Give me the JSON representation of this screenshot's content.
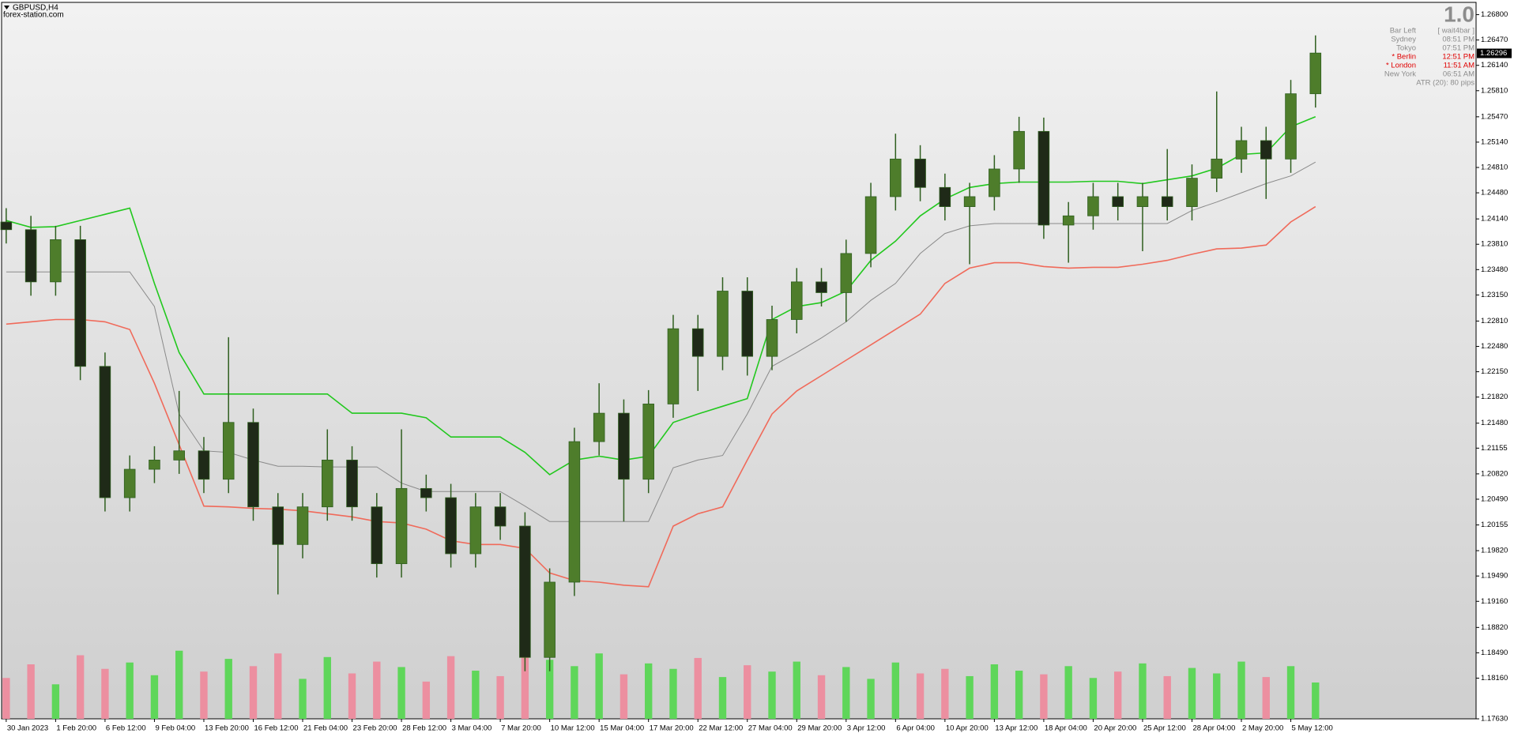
{
  "header": {
    "symbol": "GBPUSD,H4",
    "site": "forex-station.com"
  },
  "info_panel": {
    "big_value": "1.0",
    "rows": [
      {
        "label": "Bar Left",
        "value": "[ wait4bar ]",
        "color": "#8c8c8c"
      },
      {
        "label": "Sydney",
        "value": "08:51 PM",
        "color": "#8c8c8c"
      },
      {
        "label": "Tokyo",
        "value": "07:51 PM",
        "color": "#8c8c8c"
      },
      {
        "label": "* Berlin",
        "value": "12:51 PM",
        "color": "#e00000"
      },
      {
        "label": "* London",
        "value": "11:51 AM",
        "color": "#e00000"
      },
      {
        "label": "New York",
        "value": "06:51 AM",
        "color": "#8c8c8c"
      }
    ],
    "atr": "ATR (20): 80 pips"
  },
  "chart_data": {
    "type": "candlestick",
    "x": [
      0,
      8,
      16,
      24,
      32,
      40,
      48,
      56,
      64,
      72,
      80,
      88,
      96,
      104,
      112,
      120,
      128,
      136,
      144,
      152,
      160,
      168,
      176,
      184,
      192,
      200,
      208,
      216,
      224,
      232,
      240,
      248,
      256,
      264,
      272,
      280,
      288,
      296,
      304,
      312,
      320,
      328,
      336,
      344,
      352,
      360,
      368,
      376,
      384,
      392,
      400,
      408,
      416,
      424
    ],
    "open": [
      1.241,
      1.24,
      1.2332,
      1.2387,
      1.2222,
      1.2051,
      1.2088,
      1.21,
      1.2112,
      1.2075,
      1.2149,
      1.2039,
      1.199,
      1.2039,
      1.21,
      1.2039,
      1.1965,
      1.2063,
      1.2051,
      1.1978,
      1.2039,
      1.2014,
      1.1843,
      1.1941,
      1.2124,
      1.2161,
      1.2075,
      1.2173,
      1.2271,
      1.2235,
      1.232,
      1.2235,
      1.2283,
      1.2332,
      1.2318,
      1.2369,
      1.2443,
      1.2492,
      1.2455,
      1.243,
      1.2443,
      1.2479,
      1.2528,
      1.2406,
      1.2418,
      1.2443,
      1.243,
      1.2443,
      1.243,
      1.2467,
      1.2492,
      1.2516,
      1.2492,
      1.2577
    ],
    "high": [
      1.2428,
      1.2418,
      1.2405,
      1.2405,
      1.224,
      1.2106,
      1.2118,
      1.219,
      1.213,
      1.226,
      1.2167,
      1.2057,
      1.2057,
      1.214,
      1.2118,
      1.2057,
      1.214,
      1.2081,
      1.2069,
      1.2057,
      1.2057,
      1.2032,
      1.1959,
      1.2142,
      1.22,
      1.2179,
      1.2191,
      1.2289,
      1.2289,
      1.2338,
      1.2338,
      1.2301,
      1.235,
      1.235,
      1.2387,
      1.2461,
      1.2525,
      1.251,
      1.2473,
      1.2461,
      1.2497,
      1.2547,
      1.2546,
      1.2436,
      1.2461,
      1.2461,
      1.2461,
      1.2505,
      1.2485,
      1.258,
      1.2534,
      1.2534,
      1.2595,
      1.2653
    ],
    "low": [
      1.2382,
      1.2314,
      1.2314,
      1.2204,
      1.2033,
      1.2033,
      1.207,
      1.2082,
      1.2057,
      1.2057,
      1.2021,
      1.1925,
      1.1972,
      1.2021,
      1.2021,
      1.1947,
      1.1947,
      1.2033,
      1.196,
      1.196,
      1.1996,
      1.1825,
      1.1825,
      1.1923,
      1.2106,
      1.202,
      1.2057,
      1.2155,
      1.219,
      1.2217,
      1.221,
      1.2217,
      1.2265,
      1.23,
      1.228,
      1.2351,
      1.2425,
      1.2437,
      1.2412,
      1.2355,
      1.2425,
      1.2461,
      1.2388,
      1.2357,
      1.24,
      1.2412,
      1.2372,
      1.2412,
      1.2412,
      1.2449,
      1.2474,
      1.244,
      1.2474,
      1.2559
    ],
    "close": [
      1.24,
      1.2332,
      1.2387,
      1.2222,
      1.2051,
      1.2088,
      1.21,
      1.2112,
      1.2075,
      1.2149,
      1.2039,
      1.199,
      1.2039,
      1.21,
      1.2039,
      1.1965,
      1.2063,
      1.2051,
      1.1978,
      1.2039,
      1.2014,
      1.1843,
      1.1941,
      1.2124,
      1.2161,
      1.2075,
      1.2173,
      1.2271,
      1.2235,
      1.232,
      1.2235,
      1.2283,
      1.2332,
      1.2318,
      1.2369,
      1.2443,
      1.2492,
      1.2455,
      1.243,
      1.2443,
      1.2479,
      1.2528,
      1.2406,
      1.2418,
      1.2443,
      1.243,
      1.2443,
      1.243,
      1.2467,
      1.2492,
      1.2516,
      1.2492,
      1.2577,
      1.263
    ],
    "up_color": "#4e7d2b",
    "down_color": "#1f2a18",
    "wick_color": "#2f5f1f",
    "lines": [
      {
        "color": "#22c81e",
        "values": [
          1.2412,
          1.2403,
          1.2404,
          1.2412,
          1.242,
          1.2428,
          1.233,
          1.224,
          1.2186,
          1.2186,
          1.2186,
          1.2186,
          1.2186,
          1.2186,
          1.2161,
          1.2161,
          1.2161,
          1.2155,
          1.213,
          1.213,
          1.213,
          1.211,
          1.2081,
          1.21,
          1.2105,
          1.21,
          1.2105,
          1.2149,
          1.216,
          1.217,
          1.218,
          1.2283,
          1.23,
          1.2305,
          1.232,
          1.236,
          1.2385,
          1.2418,
          1.244,
          1.2455,
          1.246,
          1.2462,
          1.2462,
          1.2462,
          1.2463,
          1.2463,
          1.246,
          1.2465,
          1.247,
          1.248,
          1.2498,
          1.25,
          1.2534,
          1.2547
        ]
      },
      {
        "color": "#8a8a8a",
        "values": [
          1.2345,
          1.2345,
          1.2345,
          1.2345,
          1.2345,
          1.2345,
          1.23,
          1.216,
          1.2112,
          1.211,
          1.21,
          1.2092,
          1.2092,
          1.2091,
          1.2091,
          1.2091,
          1.207,
          1.2059,
          1.2059,
          1.2059,
          1.2059,
          1.204,
          1.202,
          1.202,
          1.202,
          1.202,
          1.202,
          1.209,
          1.21,
          1.2106,
          1.216,
          1.2222,
          1.224,
          1.2259,
          1.228,
          1.2308,
          1.233,
          1.2369,
          1.2395,
          1.2405,
          1.2408,
          1.2408,
          1.2408,
          1.2408,
          1.2408,
          1.2408,
          1.2408,
          1.2408,
          1.2425,
          1.2436,
          1.2448,
          1.246,
          1.247,
          1.2488
        ]
      },
      {
        "color": "#f06a5a",
        "values": [
          1.2277,
          1.228,
          1.2283,
          1.2283,
          1.228,
          1.227,
          1.22,
          1.212,
          1.204,
          1.2039,
          1.2037,
          1.2036,
          1.2034,
          1.203,
          1.2026,
          1.202,
          1.2018,
          1.201,
          1.1995,
          1.199,
          1.199,
          1.1985,
          1.1953,
          1.1943,
          1.1941,
          1.1937,
          1.1935,
          1.2014,
          1.203,
          1.2039,
          1.21,
          1.216,
          1.219,
          1.221,
          1.223,
          1.225,
          1.227,
          1.229,
          1.233,
          1.235,
          1.2357,
          1.2357,
          1.2352,
          1.235,
          1.2351,
          1.2351,
          1.2355,
          1.236,
          1.2368,
          1.2375,
          1.2376,
          1.238,
          1.241,
          1.243
        ]
      }
    ],
    "volume": {
      "axis": "y2",
      "up_color": "#5fd65a",
      "down_color": "#ec8fa0",
      "values": [
        45,
        60,
        38,
        70,
        55,
        62,
        48,
        75,
        52,
        66,
        58,
        72,
        44,
        68,
        50,
        63,
        57,
        41,
        69,
        53,
        47,
        80,
        65,
        58,
        72,
        49,
        61,
        55,
        67,
        46,
        59,
        52,
        63,
        48,
        57,
        44,
        62,
        50,
        55,
        47,
        60,
        53,
        49,
        58,
        45,
        52,
        61,
        47,
        56,
        50,
        63,
        46,
        58,
        40
      ]
    },
    "y2lim": [
      0,
      100
    ],
    "xlim": [
      -1.5,
      476
    ],
    "xticks": [
      {
        "value": 0,
        "label": "30 Jan 2023"
      },
      {
        "value": 16,
        "label": "1 Feb 20:00"
      },
      {
        "value": 32,
        "label": "6 Feb 12:00"
      },
      {
        "value": 48,
        "label": "9 Feb 04:00"
      },
      {
        "value": 64,
        "label": "13 Feb 20:00"
      },
      {
        "value": 80,
        "label": "16 Feb 12:00"
      },
      {
        "value": 96,
        "label": "21 Feb 04:00"
      },
      {
        "value": 112,
        "label": "23 Feb 20:00"
      },
      {
        "value": 128,
        "label": "28 Feb 12:00"
      },
      {
        "value": 144,
        "label": "3 Mar 04:00"
      },
      {
        "value": 160,
        "label": "7 Mar 20:00"
      },
      {
        "value": 176,
        "label": "10 Mar 12:00"
      },
      {
        "value": 192,
        "label": "15 Mar 04:00"
      },
      {
        "value": 208,
        "label": "17 Mar 20:00"
      },
      {
        "value": 224,
        "label": "22 Mar 12:00"
      },
      {
        "value": 240,
        "label": "27 Mar 04:00"
      },
      {
        "value": 256,
        "label": "29 Mar 20:00"
      },
      {
        "value": 272,
        "label": "3 Apr 12:00"
      },
      {
        "value": 288,
        "label": "6 Apr 04:00"
      },
      {
        "value": 304,
        "label": "10 Apr 20:00"
      },
      {
        "value": 320,
        "label": "13 Apr 12:00"
      },
      {
        "value": 336,
        "label": "18 Apr 04:00"
      },
      {
        "value": 352,
        "label": "20 Apr 20:00"
      },
      {
        "value": 368,
        "label": "25 Apr 12:00"
      },
      {
        "value": 384,
        "label": "28 Apr 04:00"
      },
      {
        "value": 400,
        "label": "2 May 20:00"
      },
      {
        "value": 416,
        "label": "5 May 12:00"
      }
    ],
    "ylim": [
      1.1763,
      1.2696
    ],
    "yticks": [
      {
        "value": 1.268,
        "label": "1.26800"
      },
      {
        "value": 1.2647,
        "label": "1.26470"
      },
      {
        "value": 1.2614,
        "label": "1.26140"
      },
      {
        "value": 1.2581,
        "label": "1.25810"
      },
      {
        "value": 1.2547,
        "label": "1.25470"
      },
      {
        "value": 1.2514,
        "label": "1.25140"
      },
      {
        "value": 1.2481,
        "label": "1.24810"
      },
      {
        "value": 1.2448,
        "label": "1.24480"
      },
      {
        "value": 1.2414,
        "label": "1.24140"
      },
      {
        "value": 1.2381,
        "label": "1.23810"
      },
      {
        "value": 1.2348,
        "label": "1.23480"
      },
      {
        "value": 1.2315,
        "label": "1.23150"
      },
      {
        "value": 1.2281,
        "label": "1.22810"
      },
      {
        "value": 1.2248,
        "label": "1.22480"
      },
      {
        "value": 1.2215,
        "label": "1.22150"
      },
      {
        "value": 1.2182,
        "label": "1.21820"
      },
      {
        "value": 1.2148,
        "label": "1.21480"
      },
      {
        "value": 1.21155,
        "label": "1.21155"
      },
      {
        "value": 1.2082,
        "label": "1.20820"
      },
      {
        "value": 1.2049,
        "label": "1.20490"
      },
      {
        "value": 1.20155,
        "label": "1.20155"
      },
      {
        "value": 1.1982,
        "label": "1.19820"
      },
      {
        "value": 1.1949,
        "label": "1.19490"
      },
      {
        "value": 1.1916,
        "label": "1.19160"
      },
      {
        "value": 1.1882,
        "label": "1.18820"
      },
      {
        "value": 1.1849,
        "label": "1.18490"
      },
      {
        "value": 1.1816,
        "label": "1.18160"
      },
      {
        "value": 1.1763,
        "label": "1.17630"
      }
    ],
    "current_price": 1.26296
  }
}
